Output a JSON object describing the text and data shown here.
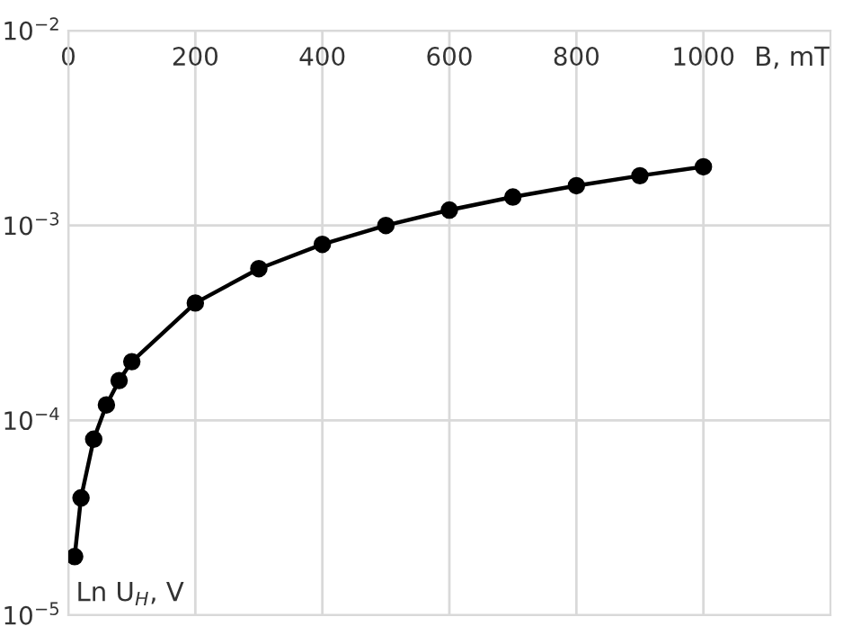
{
  "chart_data": {
    "type": "line",
    "xlabel": "B, mT",
    "ylabel": "Ln U$_{H}$, V",
    "x": [
      10,
      20,
      40,
      60,
      80,
      100,
      200,
      300,
      400,
      500,
      600,
      700,
      800,
      900,
      1000
    ],
    "series": [
      {
        "color": "#000000",
        "values": [
          2e-05,
          4e-05,
          8e-05,
          0.00012,
          0.00016,
          0.0002,
          0.0004,
          0.0006,
          0.0008,
          0.001,
          0.0012,
          0.0014,
          0.0016,
          0.0018,
          0.002
        ]
      }
    ],
    "xlim": [
      0,
      1200
    ],
    "xticks": [
      0,
      200,
      400,
      600,
      800,
      1000
    ],
    "ylim": [
      1e-05,
      0.01
    ],
    "yticks": [
      {
        "value": 1e-05,
        "label": "10$^{−5}$"
      },
      {
        "value": 0.0001,
        "label": "10$^{−4}$"
      },
      {
        "value": 0.001,
        "label": "10$^{−3}$"
      },
      {
        "value": 0.01,
        "label": "10$^{−2}$"
      }
    ],
    "log": "y",
    "grid": true,
    "marker": "circle",
    "line_style": "solid"
  }
}
